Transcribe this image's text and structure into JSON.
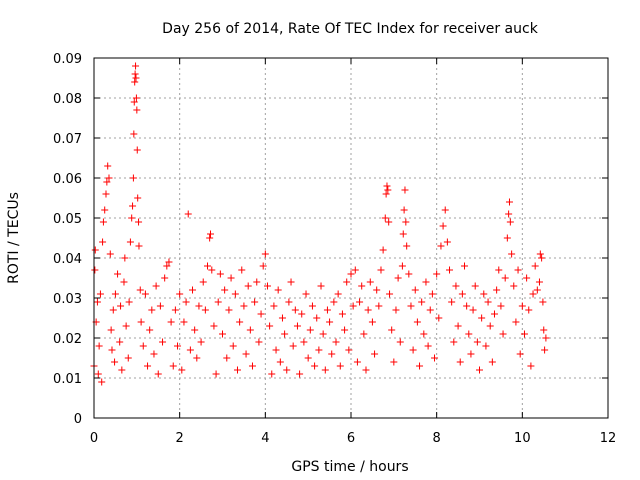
{
  "chart_data": {
    "type": "scatter",
    "title": "Day 256 of 2014, Rate Of TEC Index for receiver auck",
    "xlabel": "GPS time / hours",
    "ylabel": "ROTI / TECUs",
    "xlim": [
      0,
      12
    ],
    "ylim": [
      0,
      0.09
    ],
    "xticks": [
      0,
      2,
      4,
      6,
      8,
      10,
      12
    ],
    "yticks": [
      0,
      0.01,
      0.02,
      0.03,
      0.04,
      0.05,
      0.06,
      0.07,
      0.08,
      0.09
    ],
    "xtick_labels": [
      "0",
      "2",
      "4",
      "6",
      "8",
      "10",
      "12"
    ],
    "ytick_labels": [
      "0",
      "0.01",
      "0.02",
      "0.03",
      "0.04",
      "0.05",
      "0.06",
      "0.07",
      "0.08",
      "0.09"
    ],
    "grid": true,
    "marker": "+",
    "series": [
      {
        "name": "ROTI",
        "color": "#ff0000",
        "points": [
          [
            0.0,
            0.013
          ],
          [
            0.02,
            0.037
          ],
          [
            0.03,
            0.042
          ],
          [
            0.05,
            0.024
          ],
          [
            0.08,
            0.029
          ],
          [
            0.1,
            0.011
          ],
          [
            0.12,
            0.018
          ],
          [
            0.15,
            0.031
          ],
          [
            0.18,
            0.009
          ],
          [
            0.2,
            0.044
          ],
          [
            0.22,
            0.049
          ],
          [
            0.25,
            0.052
          ],
          [
            0.28,
            0.056
          ],
          [
            0.3,
            0.059
          ],
          [
            0.32,
            0.063
          ],
          [
            0.35,
            0.06
          ],
          [
            0.38,
            0.041
          ],
          [
            0.4,
            0.022
          ],
          [
            0.42,
            0.017
          ],
          [
            0.45,
            0.027
          ],
          [
            0.48,
            0.014
          ],
          [
            0.5,
            0.031
          ],
          [
            0.55,
            0.036
          ],
          [
            0.6,
            0.019
          ],
          [
            0.62,
            0.028
          ],
          [
            0.65,
            0.012
          ],
          [
            0.7,
            0.034
          ],
          [
            0.72,
            0.04
          ],
          [
            0.75,
            0.023
          ],
          [
            0.8,
            0.015
          ],
          [
            0.82,
            0.029
          ],
          [
            0.85,
            0.044
          ],
          [
            0.88,
            0.05
          ],
          [
            0.9,
            0.053
          ],
          [
            0.92,
            0.06
          ],
          [
            0.93,
            0.071
          ],
          [
            0.94,
            0.079
          ],
          [
            0.95,
            0.084
          ],
          [
            0.96,
            0.086
          ],
          [
            0.97,
            0.088
          ],
          [
            0.98,
            0.085
          ],
          [
            0.99,
            0.08
          ],
          [
            1.0,
            0.077
          ],
          [
            1.01,
            0.067
          ],
          [
            1.02,
            0.055
          ],
          [
            1.04,
            0.049
          ],
          [
            1.05,
            0.043
          ],
          [
            1.08,
            0.032
          ],
          [
            1.1,
            0.024
          ],
          [
            1.15,
            0.018
          ],
          [
            1.2,
            0.031
          ],
          [
            1.25,
            0.013
          ],
          [
            1.3,
            0.022
          ],
          [
            1.35,
            0.027
          ],
          [
            1.4,
            0.016
          ],
          [
            1.45,
            0.033
          ],
          [
            1.5,
            0.011
          ],
          [
            1.55,
            0.028
          ],
          [
            1.6,
            0.019
          ],
          [
            1.65,
            0.035
          ],
          [
            1.7,
            0.038
          ],
          [
            1.75,
            0.039
          ],
          [
            1.8,
            0.024
          ],
          [
            1.85,
            0.013
          ],
          [
            1.9,
            0.027
          ],
          [
            1.95,
            0.018
          ],
          [
            2.0,
            0.031
          ],
          [
            2.05,
            0.012
          ],
          [
            2.1,
            0.024
          ],
          [
            2.15,
            0.029
          ],
          [
            2.2,
            0.051
          ],
          [
            2.25,
            0.017
          ],
          [
            2.3,
            0.032
          ],
          [
            2.35,
            0.022
          ],
          [
            2.4,
            0.015
          ],
          [
            2.45,
            0.028
          ],
          [
            2.5,
            0.019
          ],
          [
            2.55,
            0.034
          ],
          [
            2.6,
            0.027
          ],
          [
            2.65,
            0.038
          ],
          [
            2.7,
            0.045
          ],
          [
            2.72,
            0.046
          ],
          [
            2.75,
            0.037
          ],
          [
            2.8,
            0.023
          ],
          [
            2.85,
            0.011
          ],
          [
            2.9,
            0.029
          ],
          [
            2.95,
            0.036
          ],
          [
            3.0,
            0.021
          ],
          [
            3.05,
            0.032
          ],
          [
            3.1,
            0.015
          ],
          [
            3.15,
            0.027
          ],
          [
            3.2,
            0.035
          ],
          [
            3.25,
            0.018
          ],
          [
            3.3,
            0.031
          ],
          [
            3.35,
            0.012
          ],
          [
            3.4,
            0.024
          ],
          [
            3.45,
            0.037
          ],
          [
            3.5,
            0.028
          ],
          [
            3.55,
            0.016
          ],
          [
            3.6,
            0.033
          ],
          [
            3.65,
            0.022
          ],
          [
            3.7,
            0.013
          ],
          [
            3.75,
            0.029
          ],
          [
            3.8,
            0.034
          ],
          [
            3.85,
            0.019
          ],
          [
            3.9,
            0.026
          ],
          [
            3.95,
            0.038
          ],
          [
            4.0,
            0.041
          ],
          [
            4.05,
            0.033
          ],
          [
            4.1,
            0.023
          ],
          [
            4.15,
            0.011
          ],
          [
            4.2,
            0.028
          ],
          [
            4.25,
            0.017
          ],
          [
            4.3,
            0.032
          ],
          [
            4.35,
            0.014
          ],
          [
            4.4,
            0.025
          ],
          [
            4.45,
            0.021
          ],
          [
            4.5,
            0.012
          ],
          [
            4.55,
            0.029
          ],
          [
            4.6,
            0.034
          ],
          [
            4.65,
            0.018
          ],
          [
            4.7,
            0.027
          ],
          [
            4.75,
            0.023
          ],
          [
            4.8,
            0.011
          ],
          [
            4.85,
            0.026
          ],
          [
            4.9,
            0.019
          ],
          [
            4.95,
            0.031
          ],
          [
            5.0,
            0.015
          ],
          [
            5.05,
            0.022
          ],
          [
            5.1,
            0.028
          ],
          [
            5.15,
            0.013
          ],
          [
            5.2,
            0.025
          ],
          [
            5.25,
            0.017
          ],
          [
            5.3,
            0.033
          ],
          [
            5.35,
            0.021
          ],
          [
            5.4,
            0.012
          ],
          [
            5.45,
            0.027
          ],
          [
            5.5,
            0.024
          ],
          [
            5.55,
            0.016
          ],
          [
            5.6,
            0.029
          ],
          [
            5.65,
            0.019
          ],
          [
            5.7,
            0.031
          ],
          [
            5.75,
            0.013
          ],
          [
            5.8,
            0.026
          ],
          [
            5.85,
            0.022
          ],
          [
            5.9,
            0.034
          ],
          [
            5.95,
            0.017
          ],
          [
            6.0,
            0.036
          ],
          [
            6.05,
            0.028
          ],
          [
            6.1,
            0.037
          ],
          [
            6.15,
            0.014
          ],
          [
            6.2,
            0.029
          ],
          [
            6.25,
            0.033
          ],
          [
            6.3,
            0.021
          ],
          [
            6.35,
            0.012
          ],
          [
            6.4,
            0.027
          ],
          [
            6.45,
            0.034
          ],
          [
            6.5,
            0.024
          ],
          [
            6.55,
            0.016
          ],
          [
            6.6,
            0.032
          ],
          [
            6.65,
            0.028
          ],
          [
            6.7,
            0.037
          ],
          [
            6.75,
            0.042
          ],
          [
            6.8,
            0.05
          ],
          [
            6.82,
            0.056
          ],
          [
            6.84,
            0.058
          ],
          [
            6.86,
            0.057
          ],
          [
            6.88,
            0.049
          ],
          [
            6.9,
            0.031
          ],
          [
            6.95,
            0.022
          ],
          [
            7.0,
            0.014
          ],
          [
            7.05,
            0.027
          ],
          [
            7.1,
            0.035
          ],
          [
            7.15,
            0.019
          ],
          [
            7.2,
            0.038
          ],
          [
            7.22,
            0.046
          ],
          [
            7.24,
            0.052
          ],
          [
            7.26,
            0.057
          ],
          [
            7.28,
            0.049
          ],
          [
            7.3,
            0.043
          ],
          [
            7.35,
            0.036
          ],
          [
            7.4,
            0.028
          ],
          [
            7.45,
            0.017
          ],
          [
            7.5,
            0.032
          ],
          [
            7.55,
            0.024
          ],
          [
            7.6,
            0.013
          ],
          [
            7.65,
            0.029
          ],
          [
            7.7,
            0.021
          ],
          [
            7.75,
            0.034
          ],
          [
            7.8,
            0.018
          ],
          [
            7.85,
            0.027
          ],
          [
            7.9,
            0.031
          ],
          [
            7.95,
            0.015
          ],
          [
            8.0,
            0.036
          ],
          [
            8.05,
            0.025
          ],
          [
            8.1,
            0.043
          ],
          [
            8.15,
            0.048
          ],
          [
            8.2,
            0.052
          ],
          [
            8.25,
            0.044
          ],
          [
            8.3,
            0.037
          ],
          [
            8.35,
            0.029
          ],
          [
            8.4,
            0.019
          ],
          [
            8.45,
            0.033
          ],
          [
            8.5,
            0.023
          ],
          [
            8.55,
            0.014
          ],
          [
            8.6,
            0.031
          ],
          [
            8.65,
            0.038
          ],
          [
            8.7,
            0.028
          ],
          [
            8.75,
            0.021
          ],
          [
            8.8,
            0.016
          ],
          [
            8.85,
            0.027
          ],
          [
            8.9,
            0.033
          ],
          [
            8.95,
            0.019
          ],
          [
            9.0,
            0.012
          ],
          [
            9.05,
            0.025
          ],
          [
            9.1,
            0.031
          ],
          [
            9.15,
            0.018
          ],
          [
            9.2,
            0.029
          ],
          [
            9.25,
            0.023
          ],
          [
            9.3,
            0.014
          ],
          [
            9.35,
            0.026
          ],
          [
            9.4,
            0.032
          ],
          [
            9.45,
            0.037
          ],
          [
            9.5,
            0.028
          ],
          [
            9.55,
            0.021
          ],
          [
            9.6,
            0.035
          ],
          [
            9.65,
            0.045
          ],
          [
            9.68,
            0.051
          ],
          [
            9.7,
            0.054
          ],
          [
            9.72,
            0.049
          ],
          [
            9.75,
            0.041
          ],
          [
            9.8,
            0.033
          ],
          [
            9.85,
            0.024
          ],
          [
            9.9,
            0.037
          ],
          [
            9.95,
            0.016
          ],
          [
            10.0,
            0.028
          ],
          [
            10.05,
            0.021
          ],
          [
            10.1,
            0.035
          ],
          [
            10.15,
            0.027
          ],
          [
            10.2,
            0.013
          ],
          [
            10.25,
            0.031
          ],
          [
            10.3,
            0.038
          ],
          [
            10.35,
            0.032
          ],
          [
            10.4,
            0.034
          ],
          [
            10.42,
            0.041
          ],
          [
            10.45,
            0.04
          ],
          [
            10.48,
            0.029
          ],
          [
            10.5,
            0.022
          ],
          [
            10.52,
            0.017
          ],
          [
            10.55,
            0.02
          ]
        ]
      }
    ]
  }
}
